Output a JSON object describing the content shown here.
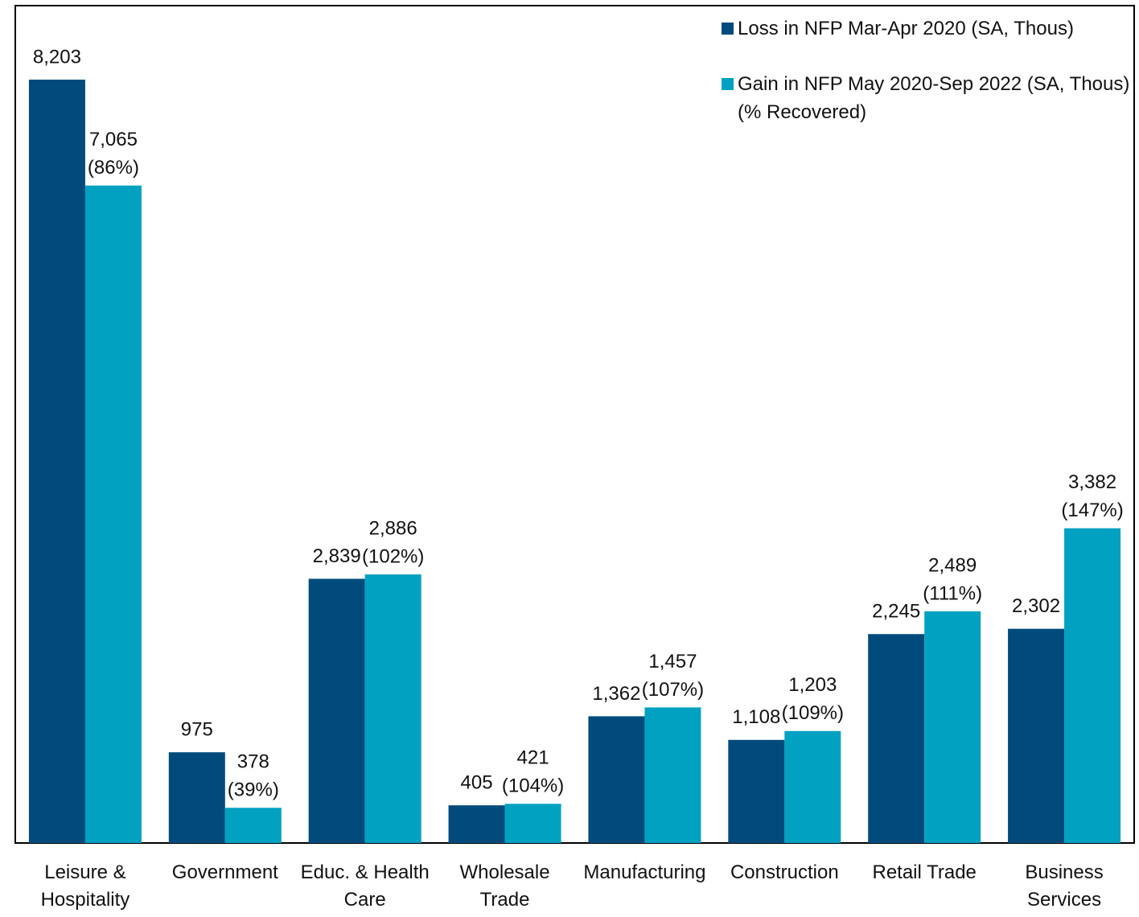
{
  "chart_data": {
    "type": "bar",
    "categories": [
      "Leisure & Hospitality",
      "Government",
      "Educ. & Health Care",
      "Wholesale Trade",
      "Manufacturing",
      "Construction",
      "Retail Trade",
      "Business Services"
    ],
    "series": [
      {
        "name": "Loss in NFP Mar-Apr 2020 (SA, Thous)",
        "color": "#004b7c",
        "values": [
          8203,
          975,
          2839,
          405,
          1362,
          1108,
          2245,
          2302
        ],
        "value_labels": [
          "8,203",
          "975",
          "2,839",
          "405",
          "1,362",
          "1,108",
          "2,245",
          "2,302"
        ]
      },
      {
        "name": "Gain in NFP May 2020-Sep 2022 (SA, Thous) (% Recovered)",
        "color": "#00a1c1",
        "values": [
          7065,
          378,
          2886,
          421,
          1457,
          1203,
          2489,
          3382
        ],
        "value_labels": [
          "7,065",
          "378",
          "2,886",
          "421",
          "1,457",
          "1,203",
          "2,489",
          "3,382"
        ],
        "recovered": [
          86,
          39,
          102,
          104,
          107,
          109,
          111,
          147
        ],
        "recovered_labels": [
          "(86%)",
          "(39%)",
          "(102%)",
          "(104%)",
          "(107%)",
          "(109%)",
          "(111%)",
          "(147%)"
        ]
      }
    ],
    "legend": "upper right"
  }
}
